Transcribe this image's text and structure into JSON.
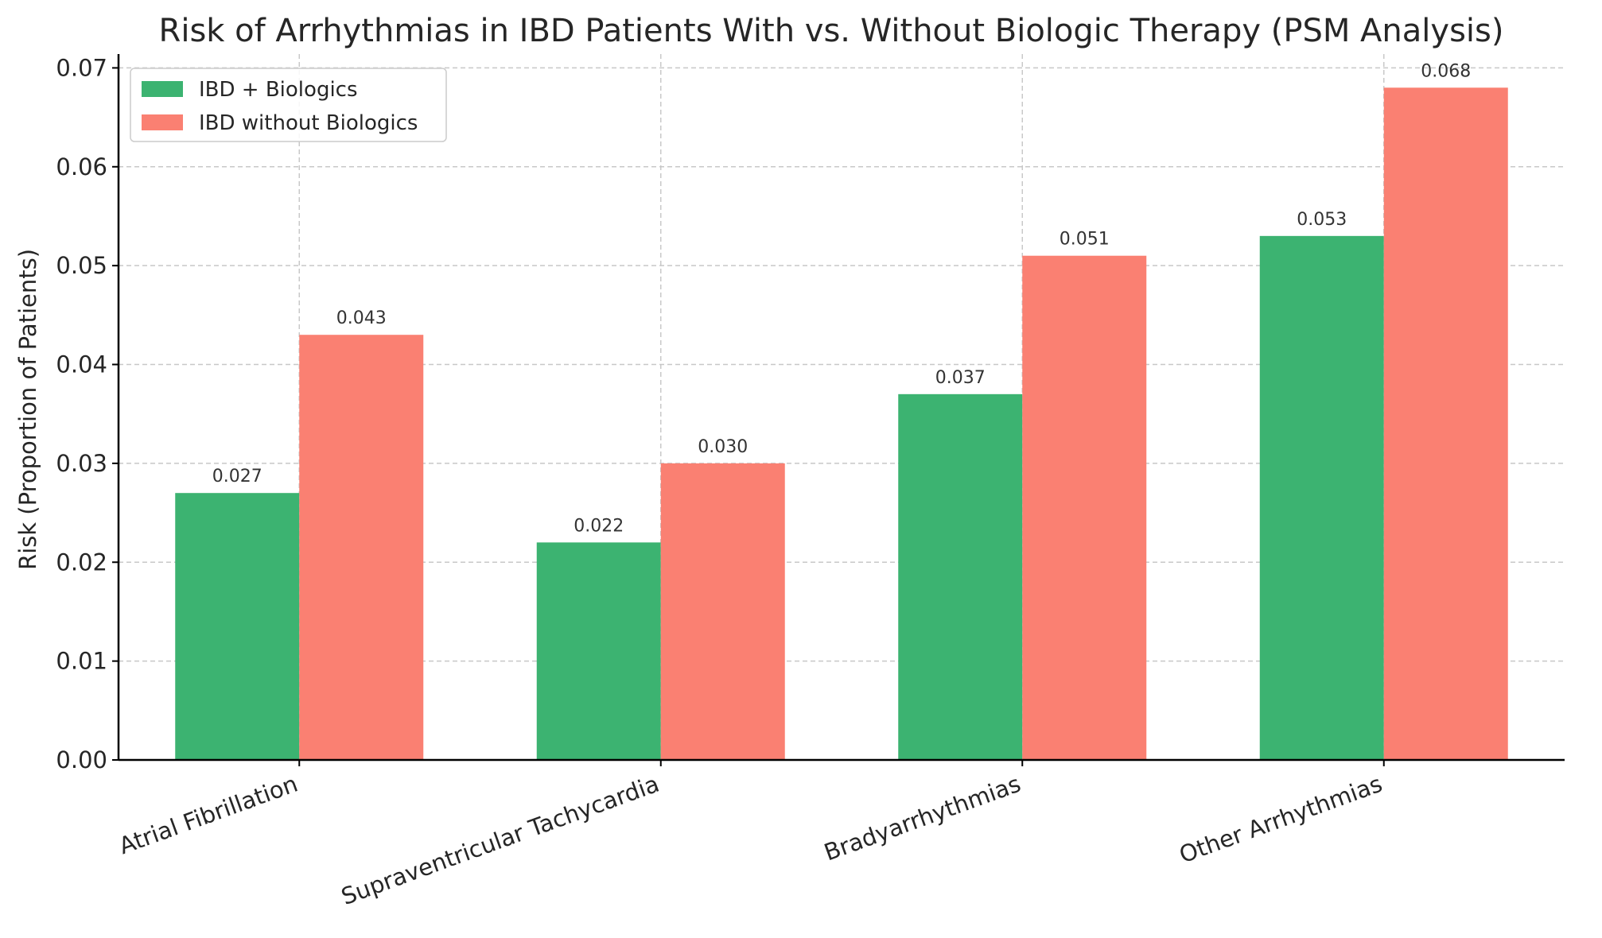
{
  "chart_data": {
    "type": "bar",
    "title": "Risk of Arrhythmias in IBD Patients With vs. Without Biologic Therapy (PSM Analysis)",
    "xlabel": "",
    "ylabel": "Risk (Proportion of Patients)",
    "categories": [
      "Atrial Fibrillation",
      "Supraventricular Tachycardia",
      "Bradyarrhythmias",
      "Other Arrhythmias"
    ],
    "series": [
      {
        "name": "IBD + Biologics",
        "color": "#3cb371",
        "values": [
          0.027,
          0.022,
          0.037,
          0.053
        ],
        "labels": [
          "0.027",
          "0.022",
          "0.037",
          "0.053"
        ]
      },
      {
        "name": "IBD without Biologics",
        "color": "#fa8072",
        "values": [
          0.043,
          0.03,
          0.051,
          0.068
        ],
        "labels": [
          "0.043",
          "0.030",
          "0.051",
          "0.068"
        ]
      }
    ],
    "ylim": [
      0,
      0.0714
    ],
    "yticks": [
      0,
      0.01,
      0.02,
      0.03,
      0.04,
      0.05,
      0.06,
      0.07
    ],
    "ytick_labels": [
      "0.00",
      "0.01",
      "0.02",
      "0.03",
      "0.04",
      "0.05",
      "0.06",
      "0.07"
    ],
    "grid": true,
    "legend_position": "top-left"
  }
}
